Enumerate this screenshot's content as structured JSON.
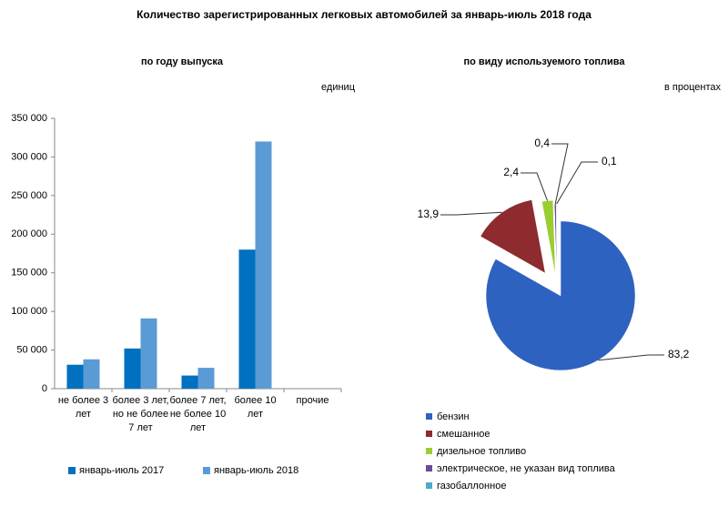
{
  "title": "Количество зарегистрированных легковых автомобилей за январь-июль 2018 года",
  "chart_data": [
    {
      "type": "bar",
      "title": "по году выпуска",
      "unit": "единиц",
      "categories": [
        "не более 3 лет",
        "более 3 лет, но не более 7 лет",
        "более 7 лет, не более 10 лет",
        "более 10 лет",
        "прочие"
      ],
      "series": [
        {
          "name": "январь-июль 2017",
          "color": "#0070c0",
          "values": [
            31000,
            52000,
            17000,
            180000,
            0
          ]
        },
        {
          "name": "январь-июль 2018",
          "color": "#5b9bd5",
          "values": [
            38000,
            91000,
            27000,
            320000,
            0
          ]
        }
      ],
      "ylim": [
        0,
        350000
      ],
      "yticks": [
        0,
        {
          "value": 50000,
          "label": "50 000"
        },
        {
          "value": 100000,
          "label": "100 000"
        },
        {
          "value": 150000,
          "label": "150 000"
        },
        {
          "value": 200000,
          "label": "200 000"
        },
        {
          "value": 250000,
          "label": "250 000"
        },
        {
          "value": 300000,
          "label": "300 000"
        },
        {
          "value": 350000,
          "label": "350 000"
        }
      ],
      "grid": false,
      "legend": "bottom"
    },
    {
      "type": "pie",
      "title": "по виду используемого топлива",
      "unit": "в процентах",
      "categories": [
        "бензин",
        "смешанное",
        "дизельное топливо",
        "электрическое, не указан вид топлива",
        "газобаллонное"
      ],
      "values": [
        83.2,
        13.9,
        2.4,
        0.4,
        0.1
      ],
      "value_labels": [
        "83,2",
        "13,9",
        "2,4",
        "0,4",
        "0,1"
      ],
      "colors": [
        "#2e62c0",
        "#8e2b2f",
        "#9acd32",
        "#6a4c9c",
        "#4bacc6"
      ],
      "legend": "bottom-left"
    }
  ]
}
